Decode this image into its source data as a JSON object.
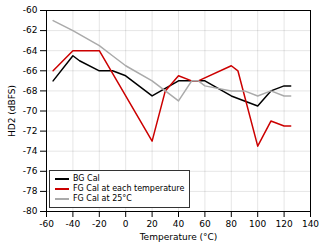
{
  "chart_data": {
    "type": "line",
    "xlabel": "Temperature (°C)",
    "ylabel": "HD2 (dBFS)",
    "xlim": [
      -60,
      140
    ],
    "ylim": [
      -80,
      -60
    ],
    "xticks": [
      -60,
      -40,
      -20,
      0,
      20,
      40,
      60,
      80,
      100,
      120,
      140
    ],
    "yticks": [
      -80,
      -78,
      -76,
      -74,
      -72,
      -70,
      -68,
      -66,
      -64,
      -62,
      -60
    ],
    "grid": true,
    "legend": "lower left",
    "series": [
      {
        "name": "BG Cal",
        "color": "#000000",
        "x": [
          -55,
          -40,
          -35,
          -20,
          -10,
          0,
          20,
          40,
          50,
          60,
          80,
          100,
          110,
          120,
          125
        ],
        "values": [
          -67,
          -64.5,
          -65,
          -66,
          -66,
          -66.5,
          -68.5,
          -67,
          -67,
          -67,
          -68.5,
          -69.5,
          -68,
          -67.5,
          -67.5
        ]
      },
      {
        "name": "FG Cal at each temperature",
        "color": "#cc0000",
        "x": [
          -55,
          -40,
          -30,
          -20,
          20,
          30,
          40,
          50,
          55,
          80,
          85,
          100,
          110,
          120,
          125
        ],
        "values": [
          -66,
          -64,
          -64,
          -64,
          -73,
          -68,
          -66.5,
          -67,
          -67,
          -65.5,
          -66,
          -73.5,
          -71,
          -71.5,
          -71.5
        ]
      },
      {
        "name": "FG Cal at 25°C",
        "color": "#aaaaaa",
        "x": [
          -55,
          -40,
          -20,
          -10,
          0,
          20,
          30,
          40,
          50,
          55,
          60,
          80,
          90,
          100,
          110,
          120,
          125
        ],
        "values": [
          -61,
          -62,
          -63.5,
          -64.5,
          -65.5,
          -67,
          -68,
          -69,
          -67,
          -67,
          -67.5,
          -68,
          -68,
          -68.5,
          -68,
          -68.5,
          -68.5
        ]
      }
    ]
  }
}
